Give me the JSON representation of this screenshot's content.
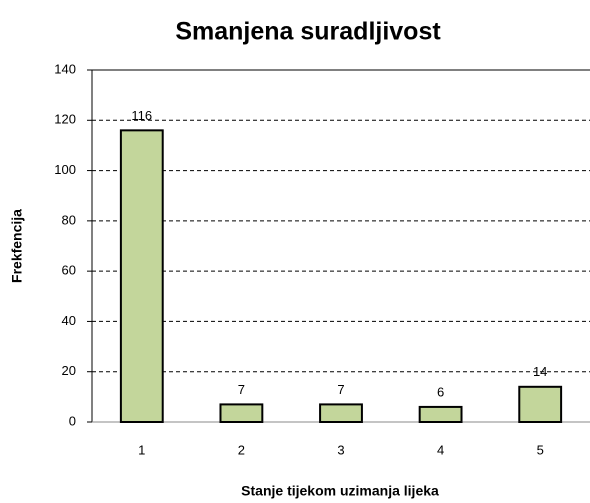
{
  "chart_data": {
    "type": "bar",
    "title": "Smanjena suradljivost",
    "x_label": "Stanje tijekom uzimanja lijeka",
    "y_label": "Frekfencija",
    "categories": [
      "1",
      "2",
      "3",
      "4",
      "5"
    ],
    "values": [
      116,
      7,
      7,
      6,
      14
    ],
    "color": "#c3d69b",
    "ylim": [
      0,
      140
    ],
    "yticks": [
      0,
      20,
      40,
      60,
      80,
      100,
      120,
      140
    ],
    "grid": true
  }
}
